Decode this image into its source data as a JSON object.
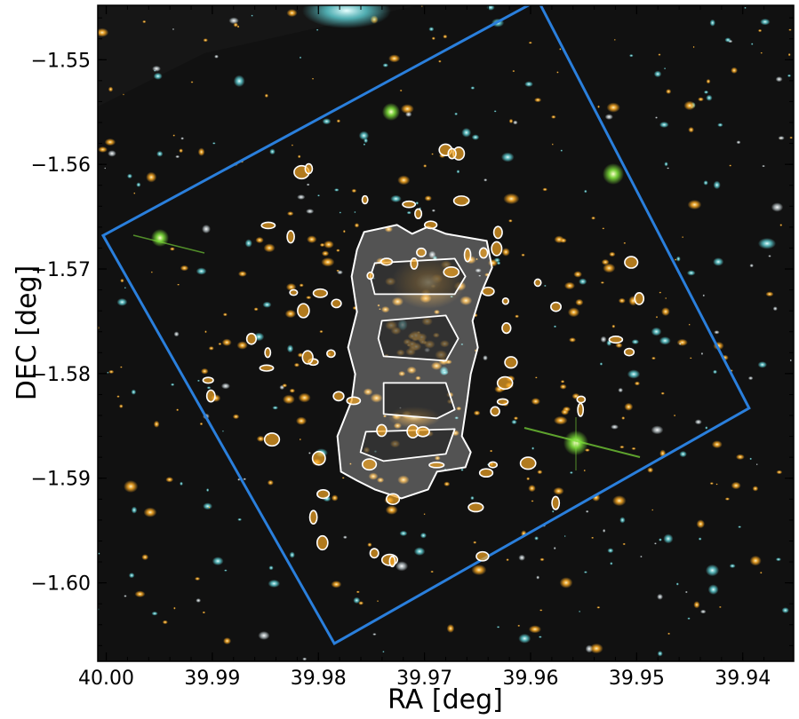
{
  "chart_data": {
    "type": "image",
    "xlabel": "RA [deg]",
    "ylabel": "DEC [deg]",
    "xlim": [
      40.0008,
      39.9352
    ],
    "ylim": [
      -1.6075,
      -1.5448
    ],
    "x_axis_inverted": true,
    "xticks": [
      40.0,
      39.99,
      39.98,
      39.97,
      39.96,
      39.95,
      39.94
    ],
    "xtick_labels": [
      "40.00",
      "39.99",
      "39.98",
      "39.97",
      "39.96",
      "39.95",
      "39.94"
    ],
    "yticks": [
      -1.55,
      -1.56,
      -1.57,
      -1.58,
      -1.59,
      -1.6
    ],
    "ytick_labels": [
      "−1.55",
      "−1.56",
      "−1.57",
      "−1.58",
      "−1.59",
      "−1.60"
    ],
    "grid": false,
    "background": "color composite sky image of a galaxy cluster (black field with cyan, white, orange galaxies)",
    "footprint_polygon": {
      "color": "#2a7fdc",
      "vertices": [
        [
          40.0003,
          -1.5668
        ],
        [
          39.9593,
          -1.5443
        ],
        [
          39.9394,
          -1.5833
        ],
        [
          39.9785,
          -1.6058
        ]
      ]
    },
    "critical_curve": {
      "color": "#ffffff",
      "fill": "semi-transparent white",
      "center": [
        39.9705,
        -1.5775
      ]
    }
  },
  "colors": {
    "footprint": "#2a7fdc",
    "curve": "#ffffff",
    "sky": "#111111",
    "orange_galaxy": "#f5a623",
    "cyan_galaxy": "#5fd3d8",
    "green_star": "#7ee03a"
  }
}
